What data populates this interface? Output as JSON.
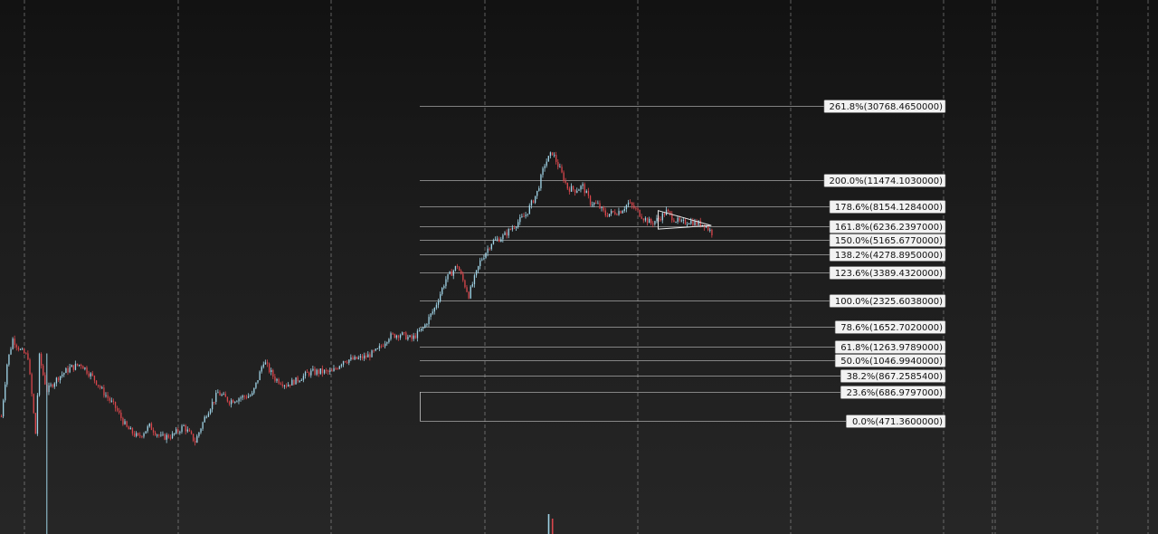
{
  "chart_data": {
    "type": "candlestick",
    "title": "",
    "xlabel": "",
    "ylabel": "",
    "grid": true,
    "colors": {
      "up": "#9fd3e6",
      "down": "#d9464c",
      "fib_line": "#c8c8c8",
      "grid": "#c0c0c0",
      "triangle": "#e8e8e8"
    },
    "fibonacci_levels": [
      {
        "ratio": 2.618,
        "value": 30768.465,
        "label": "261.8%(30768.4650000)"
      },
      {
        "ratio": 2.0,
        "value": 11474.103,
        "label": "200.0%(11474.1030000)"
      },
      {
        "ratio": 1.786,
        "value": 8154.1284,
        "label": "178.6%(8154.1284000)"
      },
      {
        "ratio": 1.618,
        "value": 6236.2397,
        "label": "161.8%(6236.2397000)"
      },
      {
        "ratio": 1.5,
        "value": 5165.677,
        "label": "150.0%(5165.6770000)"
      },
      {
        "ratio": 1.382,
        "value": 4278.895,
        "label": "138.2%(4278.8950000)"
      },
      {
        "ratio": 1.236,
        "value": 3389.432,
        "label": "123.6%(3389.4320000)"
      },
      {
        "ratio": 1.0,
        "value": 2325.6038,
        "label": "100.0%(2325.6038000)"
      },
      {
        "ratio": 0.786,
        "value": 1652.702,
        "label": "78.6%(1652.7020000)"
      },
      {
        "ratio": 0.618,
        "value": 1263.9789,
        "label": "61.8%(1263.9789000)"
      },
      {
        "ratio": 0.5,
        "value": 1046.994,
        "label": "50.0%(1046.9940000)"
      },
      {
        "ratio": 0.382,
        "value": 867.2585,
        "label": "38.2%(867.2585400)"
      },
      {
        "ratio": 0.236,
        "value": 686.9797,
        "label": "23.6%(686.9797000)"
      },
      {
        "ratio": 0.0,
        "value": 471.36,
        "label": "0.0%(471.3600000)"
      }
    ],
    "price_keypoints": [
      [
        0,
        500
      ],
      [
        3,
        1000
      ],
      [
        6,
        1400
      ],
      [
        10,
        1200
      ],
      [
        14,
        1100
      ],
      [
        18,
        400
      ],
      [
        20,
        1100
      ],
      [
        24,
        700
      ],
      [
        30,
        850
      ],
      [
        36,
        950
      ],
      [
        42,
        1000
      ],
      [
        48,
        850
      ],
      [
        54,
        680
      ],
      [
        60,
        560
      ],
      [
        66,
        430
      ],
      [
        72,
        380
      ],
      [
        78,
        440
      ],
      [
        84,
        380
      ],
      [
        90,
        390
      ],
      [
        96,
        440
      ],
      [
        102,
        360
      ],
      [
        108,
        520
      ],
      [
        114,
        680
      ],
      [
        120,
        610
      ],
      [
        126,
        640
      ],
      [
        132,
        660
      ],
      [
        138,
        1040
      ],
      [
        144,
        830
      ],
      [
        150,
        760
      ],
      [
        156,
        820
      ],
      [
        162,
        900
      ],
      [
        168,
        910
      ],
      [
        174,
        900
      ],
      [
        180,
        1050
      ],
      [
        186,
        1060
      ],
      [
        192,
        1100
      ],
      [
        198,
        1200
      ],
      [
        204,
        1450
      ],
      [
        210,
        1500
      ],
      [
        216,
        1400
      ],
      [
        222,
        1620
      ],
      [
        228,
        2100
      ],
      [
        234,
        3100
      ],
      [
        240,
        3700
      ],
      [
        246,
        2500
      ],
      [
        252,
        3900
      ],
      [
        258,
        5000
      ],
      [
        264,
        5400
      ],
      [
        270,
        6300
      ],
      [
        276,
        7300
      ],
      [
        282,
        9800
      ],
      [
        286,
        14200
      ],
      [
        290,
        16600
      ],
      [
        294,
        13200
      ],
      [
        298,
        10400
      ],
      [
        302,
        10100
      ],
      [
        306,
        10600
      ],
      [
        310,
        8600
      ],
      [
        314,
        8300
      ],
      [
        318,
        7300
      ],
      [
        322,
        7500
      ],
      [
        326,
        7700
      ],
      [
        330,
        8500
      ],
      [
        334,
        7800
      ],
      [
        338,
        7000
      ],
      [
        342,
        6500
      ],
      [
        346,
        6900
      ],
      [
        350,
        7600
      ],
      [
        354,
        6900
      ],
      [
        358,
        6500
      ],
      [
        362,
        6700
      ],
      [
        366,
        6500
      ],
      [
        370,
        6400
      ],
      [
        374,
        5700
      ]
    ],
    "triangle_pattern": {
      "start_candle": 346,
      "end_candle": 374,
      "upper_start": 7700,
      "upper_end": 6300,
      "lower_start": 6000,
      "lower_end": 6300
    },
    "volume_spike_candles": [
      288,
      290
    ]
  }
}
